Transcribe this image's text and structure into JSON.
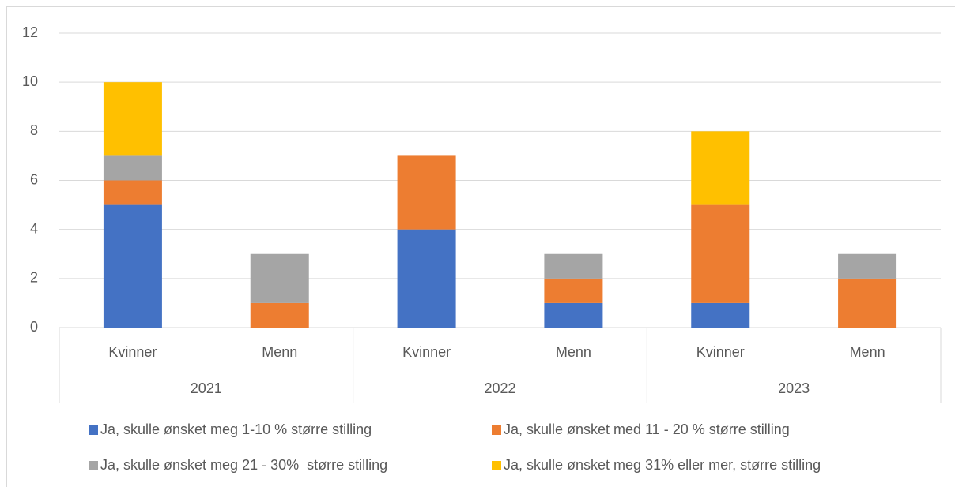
{
  "chart_data": {
    "type": "stacked_bar",
    "categories": [
      "Kvinner",
      "Menn",
      "Kvinner",
      "Menn",
      "Kvinner",
      "Menn"
    ],
    "group_labels": [
      "2021",
      "2022",
      "2023"
    ],
    "series": [
      {
        "name": "Ja, skulle ønsket meg 1-10 % større stilling",
        "color": "#4472c4",
        "values": [
          5,
          0,
          4,
          1,
          1,
          0
        ]
      },
      {
        "name": "Ja, skulle ønsket med 11 - 20 % større stilling",
        "color": "#ed7d31",
        "values": [
          1,
          1,
          3,
          1,
          4,
          2
        ]
      },
      {
        "name": "Ja, skulle ønsket meg 21 - 30%  større stilling",
        "color": "#a5a5a5",
        "values": [
          1,
          2,
          0,
          1,
          0,
          1
        ]
      },
      {
        "name": "Ja, skulle ønsket meg 31% eller mer, større stilling",
        "color": "#ffc000",
        "values": [
          3,
          0,
          0,
          0,
          3,
          0
        ]
      }
    ],
    "ylim": [
      0,
      12
    ],
    "yticks": [
      0,
      2,
      4,
      6,
      8,
      10,
      12
    ],
    "grid": true,
    "legend": "bottom"
  }
}
